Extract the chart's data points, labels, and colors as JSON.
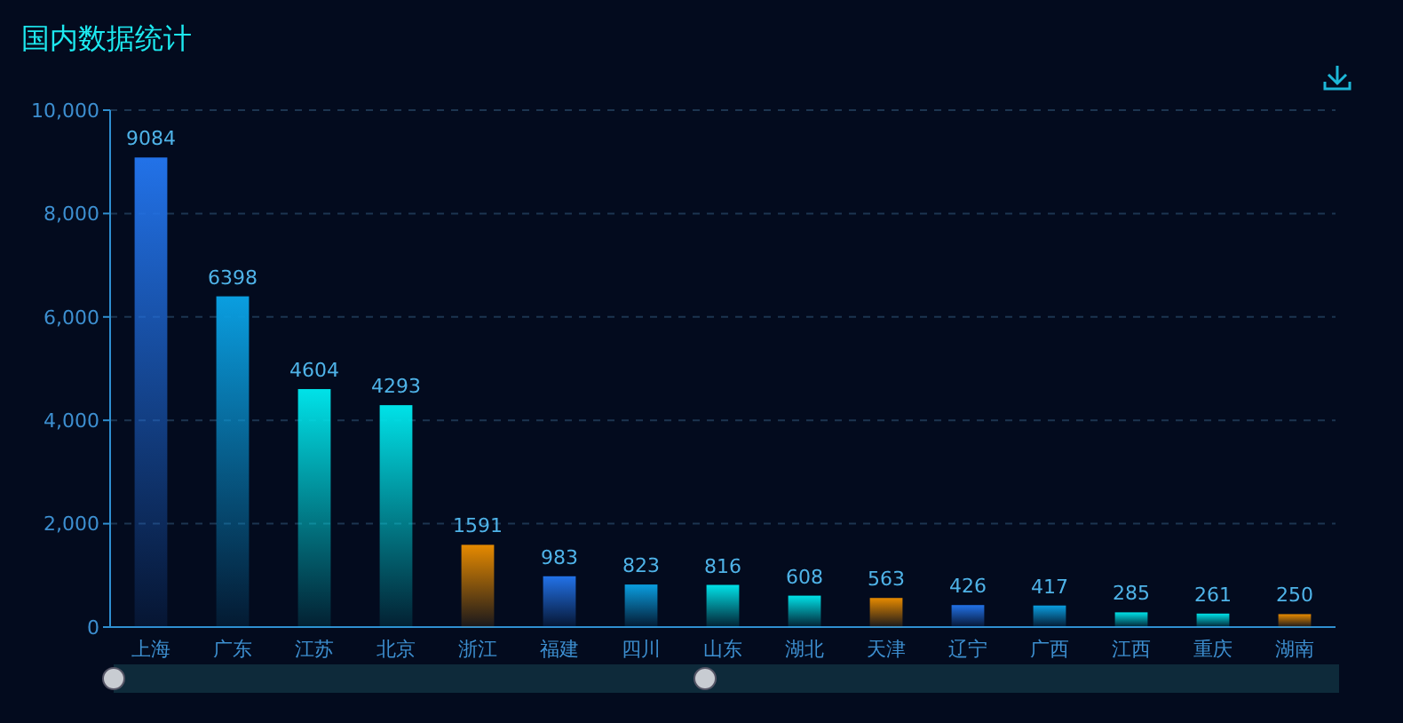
{
  "chart_data": {
    "type": "bar",
    "title": "国内数据统计",
    "categories": [
      "上海",
      "广东",
      "江苏",
      "北京",
      "浙江",
      "福建",
      "四川",
      "山东",
      "湖北",
      "天津",
      "辽宁",
      "广西",
      "江西",
      "重庆",
      "湖南"
    ],
    "values": [
      9084,
      6398,
      4604,
      4293,
      1591,
      983,
      823,
      816,
      608,
      563,
      426,
      417,
      285,
      261,
      250
    ],
    "colors": [
      "#2272e8",
      "#0a9ee0",
      "#00e2e8",
      "#00e2e8",
      "#e68a00",
      "#2272e8",
      "#0a9ee0",
      "#00e2e8",
      "#00e2e8",
      "#e68a00",
      "#2272e8",
      "#0a9ee0",
      "#00e2e8",
      "#00e2e8",
      "#e68a00"
    ],
    "ylim": [
      0,
      10000
    ],
    "yticks": [
      0,
      {
        "value": 2000,
        "label": "2,000"
      },
      {
        "value": 4000,
        "label": "4,000"
      },
      {
        "value": 6000,
        "label": "6,000"
      },
      {
        "value": 8000,
        "label": "8,000"
      },
      {
        "value": 10000,
        "label": "10,000"
      }
    ],
    "grid": "y",
    "data_labels": true
  }
}
